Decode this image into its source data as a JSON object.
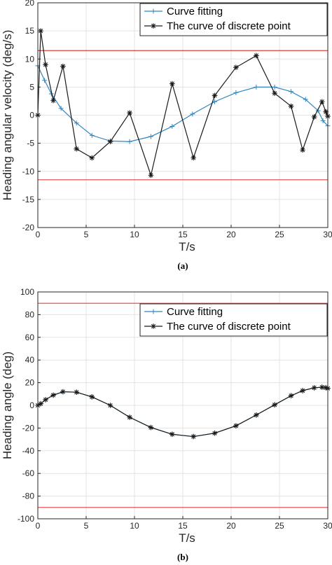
{
  "chart_data": [
    {
      "type": "line",
      "panel_label": "(a)",
      "xlabel": "T/s",
      "ylabel": "Heading angular velocity (deg/s)",
      "xlim": [
        0,
        30
      ],
      "ylim": [
        -20,
        20
      ],
      "xticks": [
        0,
        5,
        10,
        15,
        20,
        25,
        30
      ],
      "yticks": [
        -20,
        -15,
        -10,
        -5,
        0,
        5,
        10,
        15,
        20
      ],
      "grid": true,
      "legend_position": "top-right",
      "reference_lines": {
        "y": [
          11.5,
          -11.5
        ],
        "color": "#e04040"
      },
      "series": [
        {
          "name": "Curve fitting",
          "color": "#2e86c1",
          "marker": "plus",
          "x": [
            0,
            0.7,
            1.4,
            2.4,
            4,
            5.6,
            7.5,
            9.5,
            11.7,
            13.9,
            16,
            18.3,
            20.5,
            22.6,
            24.5,
            26.2,
            27.7,
            29,
            29.5,
            30
          ],
          "y": [
            8.8,
            6.2,
            3.8,
            1.2,
            -1.4,
            -3.6,
            -4.6,
            -4.7,
            -3.8,
            -2,
            0.2,
            2.4,
            4,
            5,
            5,
            4.2,
            2.8,
            0.8,
            -1,
            -1.9
          ]
        },
        {
          "name": "The curve of discrete point",
          "color": "#1a1a1a",
          "marker": "asterisk",
          "x": [
            0,
            0.3,
            0.8,
            1.6,
            2.6,
            4,
            5.6,
            7.5,
            9.5,
            11.7,
            13.9,
            16.1,
            18.3,
            20.5,
            22.6,
            24.5,
            26.2,
            27.4,
            28.6,
            29.4,
            29.8,
            30
          ],
          "y": [
            0,
            15,
            9,
            2.6,
            8.7,
            -6,
            -7.6,
            -4.7,
            0.4,
            -10.7,
            5.6,
            -7.6,
            3.5,
            8.5,
            10.6,
            3.9,
            1.6,
            -6.2,
            -0.3,
            2.4,
            0.6,
            -0.2
          ]
        }
      ]
    },
    {
      "type": "line",
      "panel_label": "(b)",
      "xlabel": "T/s",
      "ylabel": "Heading angle (deg)",
      "xlim": [
        0,
        30
      ],
      "ylim": [
        -100,
        100
      ],
      "xticks": [
        0,
        5,
        10,
        15,
        20,
        25,
        30
      ],
      "yticks": [
        -100,
        -80,
        -60,
        -40,
        -20,
        0,
        20,
        40,
        60,
        80,
        100
      ],
      "grid": true,
      "legend_position": "top-right",
      "reference_lines": {
        "y": [
          90,
          -90
        ],
        "color": "#e04040"
      },
      "series": [
        {
          "name": "Curve fitting",
          "color": "#2e86c1",
          "marker": "plus",
          "x": [
            0,
            0.3,
            0.8,
            1.6,
            2.6,
            4,
            5.6,
            7.5,
            9.5,
            11.7,
            13.9,
            16.1,
            18.3,
            20.5,
            22.6,
            24.5,
            26.2,
            27.4,
            28.6,
            29.4,
            29.8,
            30
          ],
          "y": [
            0,
            1.5,
            5,
            9,
            12,
            11.6,
            7.5,
            0,
            -10.5,
            -19.5,
            -25.5,
            -27.5,
            -24.5,
            -18,
            -8.5,
            0.5,
            8.5,
            13,
            15.5,
            16,
            15.6,
            15
          ]
        },
        {
          "name": "The curve of discrete point",
          "color": "#1a1a1a",
          "marker": "asterisk",
          "x": [
            0,
            0.3,
            0.8,
            1.6,
            2.6,
            4,
            5.6,
            7.5,
            9.5,
            11.7,
            13.9,
            16.1,
            18.3,
            20.5,
            22.6,
            24.5,
            26.2,
            27.4,
            28.6,
            29.4,
            29.8,
            30
          ],
          "y": [
            0,
            1.5,
            5,
            9,
            12,
            11.6,
            7.5,
            0,
            -10.5,
            -19.5,
            -25.5,
            -27.5,
            -24.5,
            -18,
            -8.5,
            0.5,
            8.5,
            13,
            15.5,
            16,
            15.6,
            15
          ]
        }
      ]
    }
  ]
}
